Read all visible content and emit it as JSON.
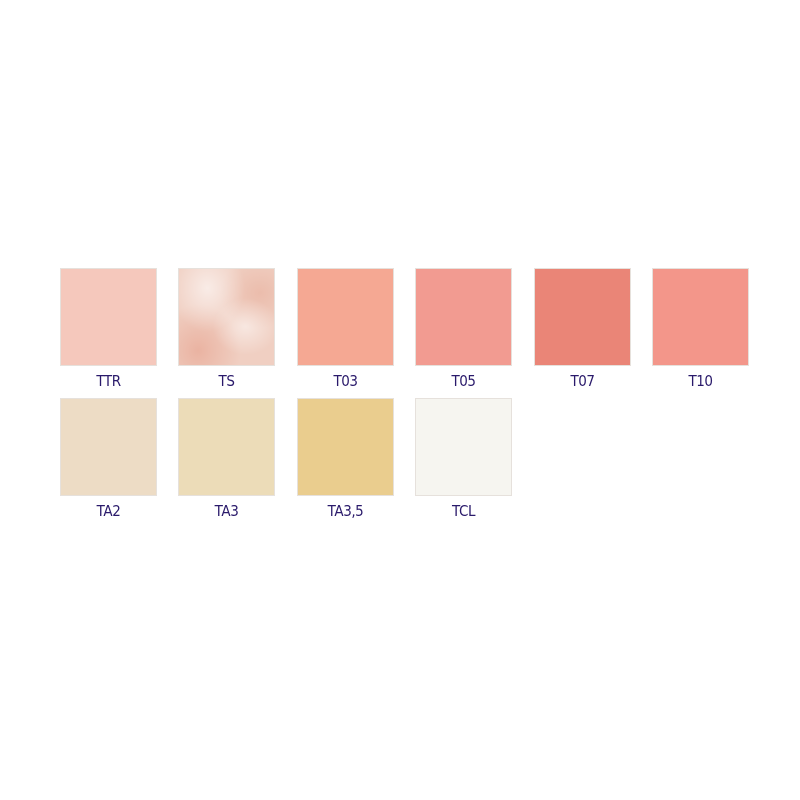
{
  "swatches": [
    {
      "label": "TTR",
      "color": "#f5c8bc"
    },
    {
      "label": "TS",
      "color": "#f0cfc2"
    },
    {
      "label": "T03",
      "color": "#f5a893"
    },
    {
      "label": "T05",
      "color": "#f29b91"
    },
    {
      "label": "T07",
      "color": "#ea8577"
    },
    {
      "label": "T10",
      "color": "#f3968a"
    },
    {
      "label": "TA2",
      "color": "#eddcc5"
    },
    {
      "label": "TA3",
      "color": "#ecdcb8"
    },
    {
      "label": "TA3,5",
      "color": "#eacd8e"
    },
    {
      "label": "TCL",
      "color": "#f6f5f0"
    }
  ],
  "label_color": "#2a1a6b"
}
